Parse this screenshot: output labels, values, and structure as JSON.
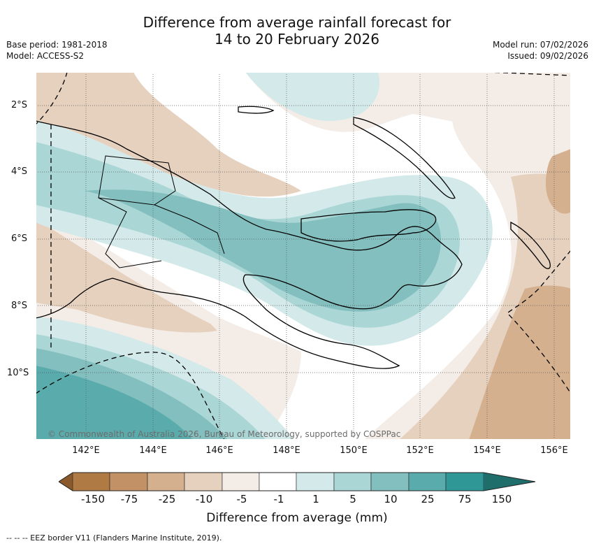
{
  "title": {
    "line1": "Difference from average rainfall forecast for",
    "line2": "14 to 20 February 2026"
  },
  "meta_left": {
    "base_period": "Base period: 1981-2018",
    "model": "Model: ACCESS-S2"
  },
  "meta_right": {
    "model_run": "Model run: 07/02/2026",
    "issued": "Issued: 09/02/2026"
  },
  "map": {
    "lat_labels": [
      "2°S",
      "4°S",
      "6°S",
      "8°S",
      "10°S"
    ],
    "lon_labels": [
      "142°E",
      "144°E",
      "146°E",
      "148°E",
      "150°E",
      "152°E",
      "154°E",
      "156°E"
    ],
    "copyright": "© Commonwealth of Australia 2026, Bureau of Meteorology, supported by COSPPac"
  },
  "colorbar": {
    "label": "Difference from average (mm)",
    "ticks": [
      "-150",
      "-75",
      "-25",
      "-10",
      "-5",
      "-1",
      "1",
      "5",
      "10",
      "25",
      "75",
      "150"
    ],
    "colors": {
      "lt_neg150": "#8a5a2c",
      "neg150_neg75": "#b07a45",
      "neg75_neg25": "#c29165",
      "neg25_neg10": "#d4b08f",
      "neg10_neg5": "#e6d1bf",
      "neg5_neg1": "#f4ede7",
      "neg1_pos1": "#ffffff",
      "pos1_pos5": "#d4e9e9",
      "pos5_pos10": "#aad6d6",
      "pos10_pos25": "#83bfbf",
      "pos25_pos75": "#5aacac",
      "pos75_pos150": "#2f9896",
      "gt_pos150": "#1f6e6c"
    }
  },
  "footnote": "-- -- -- EEZ border V11 (Flanders Marine Institute, 2019)."
}
